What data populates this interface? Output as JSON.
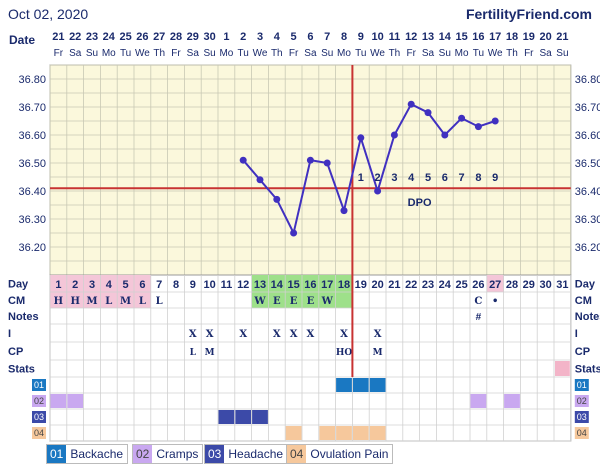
{
  "header": {
    "date": "Oct 02, 2020",
    "site": "FertilityFriend.com"
  },
  "row_labels": {
    "date": "Date",
    "day": "Day",
    "cm": "CM",
    "notes": "Notes",
    "i": "I",
    "cp": "CP",
    "stats": "Stats"
  },
  "dates": [
    "21",
    "22",
    "23",
    "24",
    "25",
    "26",
    "27",
    "28",
    "29",
    "30",
    "1",
    "2",
    "3",
    "4",
    "5",
    "6",
    "7",
    "8",
    "9",
    "10",
    "11",
    "12",
    "13",
    "14",
    "15",
    "16",
    "17",
    "18",
    "19",
    "20",
    "21"
  ],
  "weekdays": [
    "Fr",
    "Sa",
    "Su",
    "Mo",
    "Tu",
    "We",
    "Th",
    "Fr",
    "Sa",
    "Su",
    "Mo",
    "Tu",
    "We",
    "Th",
    "Fr",
    "Sa",
    "Su",
    "Mo",
    "Tu",
    "We",
    "Th",
    "Fr",
    "Sa",
    "Su",
    "Mo",
    "Tu",
    "We",
    "Th",
    "Fr",
    "Sa",
    "Su"
  ],
  "cm": [
    "H",
    "H",
    "M",
    "L",
    "M",
    "L",
    "L",
    "",
    "",
    "",
    "",
    "",
    "W",
    "E",
    "E",
    "E",
    "W",
    "",
    "",
    "",
    "",
    "",
    "",
    "",
    "",
    "C",
    "•",
    "",
    "",
    "",
    ""
  ],
  "notes": [
    "",
    "",
    "",
    "",
    "",
    "",
    "",
    "",
    "",
    "",
    "",
    "",
    "",
    "",
    "",
    "",
    "",
    "",
    "",
    "",
    "",
    "",
    "",
    "",
    "",
    "#",
    "",
    "",
    "",
    "",
    ""
  ],
  "intercourse": [
    "",
    "",
    "",
    "",
    "",
    "",
    "",
    "",
    "X",
    "X",
    "",
    "X",
    "",
    "X",
    "X",
    "X",
    "",
    "X",
    "",
    "X",
    "",
    "",
    "",
    "",
    "",
    "",
    "",
    "",
    "",
    "",
    ""
  ],
  "cp": [
    "",
    "",
    "",
    "",
    "",
    "",
    "",
    "",
    "L",
    "M",
    "",
    "",
    "",
    "",
    "",
    "",
    "",
    "HO",
    "",
    "M",
    "",
    "",
    "",
    "",
    "",
    "",
    "",
    "",
    "",
    "",
    ""
  ],
  "dpo": [
    "1",
    "2",
    "3",
    "4",
    "5",
    "6",
    "7",
    "8",
    "9"
  ],
  "dpo_label": "DPO",
  "legend": [
    {
      "num": "01",
      "label": "Backache",
      "color": "#1a78c2"
    },
    {
      "num": "02",
      "label": "Cramps",
      "color": "#c9a8f0"
    },
    {
      "num": "03",
      "label": "Headache",
      "color": "#3c4aa8"
    },
    {
      "num": "04",
      "label": "Ovulation Pain",
      "color": "#f6c89c"
    }
  ],
  "colors": {
    "temp_line": "#4030c0",
    "coverline": "#c83232",
    "fertile": "#9ee08a",
    "menses": "#f4c6d8",
    "chart_bg": "#fbf8dc"
  },
  "chart_data": {
    "type": "line",
    "ylim": [
      36.1,
      36.85
    ],
    "yticks": [
      36.2,
      36.3,
      36.4,
      36.5,
      36.6,
      36.7,
      36.8
    ],
    "ytick_labels": [
      "36.20",
      "36.30",
      "36.40",
      "36.50",
      "36.60",
      "36.70",
      "36.80"
    ],
    "coverline": 36.41,
    "ovulation_day": 18,
    "days": [
      1,
      2,
      3,
      4,
      5,
      6,
      7,
      8,
      9,
      10,
      11,
      12,
      13,
      14,
      15,
      16,
      17,
      18,
      19,
      20,
      21,
      22,
      23,
      24,
      25,
      26,
      27,
      28,
      29,
      30,
      31
    ],
    "series": [
      {
        "points": [
          [
            12,
            36.51
          ],
          [
            13,
            36.44
          ],
          [
            14,
            36.37
          ],
          [
            15,
            36.25
          ],
          [
            16,
            36.51
          ],
          [
            17,
            36.5
          ],
          [
            18,
            36.33
          ],
          [
            19,
            36.59
          ],
          [
            20,
            36.4
          ],
          [
            21,
            36.6
          ],
          [
            22,
            36.71
          ],
          [
            23,
            36.68
          ],
          [
            24,
            36.6
          ],
          [
            25,
            36.66
          ],
          [
            26,
            36.63
          ],
          [
            27,
            36.65
          ]
        ]
      }
    ],
    "fertile_days": [
      13,
      14,
      15,
      16,
      17,
      18
    ],
    "menses_days": [
      1,
      2,
      3,
      4,
      5,
      6
    ],
    "symptoms": [
      {
        "row": 1,
        "days": [
          18,
          19,
          20
        ]
      },
      {
        "row": 2,
        "days": [
          1,
          2,
          26,
          28
        ]
      },
      {
        "row": 3,
        "days": [
          11,
          12,
          13
        ]
      },
      {
        "row": 4,
        "days": [
          15,
          17,
          18,
          19,
          20
        ]
      }
    ],
    "stats_days": [
      31
    ]
  }
}
